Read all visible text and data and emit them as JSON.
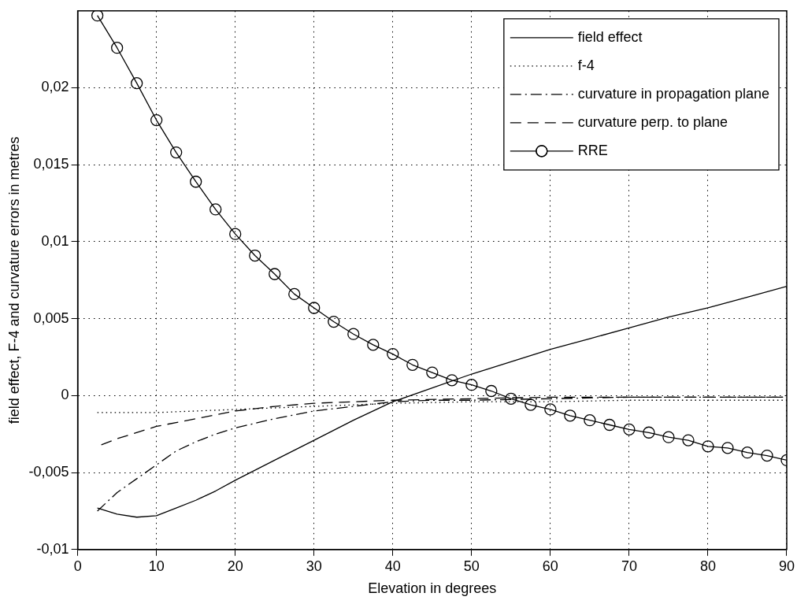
{
  "chart_data": {
    "type": "line",
    "xlabel": "Elevation in degrees",
    "ylabel": "field effect, F-4 and curvature errors in metres",
    "xlim": [
      0,
      90
    ],
    "xticks": [
      0,
      10,
      20,
      30,
      40,
      50,
      60,
      70,
      80,
      90
    ],
    "ylim": [
      -0.01,
      0.025
    ],
    "yticks": [
      {
        "value": -0.01,
        "label": "-0,01"
      },
      {
        "value": -0.005,
        "label": "-0,005"
      },
      {
        "value": 0,
        "label": "0"
      },
      {
        "value": 0.005,
        "label": "0,005"
      },
      {
        "value": 0.01,
        "label": "0,01"
      },
      {
        "value": 0.015,
        "label": "0,015"
      },
      {
        "value": 0.02,
        "label": "0,02"
      }
    ],
    "grid": true,
    "legend": "top right",
    "series": [
      {
        "name": "field effect",
        "color": "#000000",
        "line_style": "solid",
        "marker": "none",
        "x": [
          2.5,
          5,
          7.5,
          10,
          12.5,
          15,
          17.5,
          20,
          25,
          30,
          35,
          40,
          45,
          50,
          55,
          60,
          65,
          70,
          75,
          80,
          85,
          90
        ],
        "values": [
          -0.0073,
          -0.0077,
          -0.0079,
          -0.0078,
          -0.0073,
          -0.0068,
          -0.0062,
          -0.0055,
          -0.0042,
          -0.0029,
          -0.0016,
          -0.0004,
          0.0005,
          0.0014,
          0.0022,
          0.003,
          0.0037,
          0.0044,
          0.0051,
          0.0057,
          0.0064,
          0.0071
        ]
      },
      {
        "name": "f-4",
        "color": "#000000",
        "line_style": "dotted",
        "marker": "none",
        "x": [
          2.5,
          10,
          20,
          30,
          40,
          50,
          60,
          70,
          80,
          90
        ],
        "values": [
          -0.0011,
          -0.0011,
          -0.0009,
          -0.0007,
          -0.0005,
          -0.0004,
          -0.0004,
          -0.0003,
          -0.0003,
          -0.0003
        ]
      },
      {
        "name": "curvature in propagation plane",
        "color": "#000000",
        "line_style": "dashdot",
        "marker": "none",
        "x": [
          2.5,
          5,
          7.5,
          10,
          12.5,
          15,
          17.5,
          20,
          25,
          30,
          35,
          40,
          45,
          50,
          60,
          70,
          80,
          90
        ],
        "values": [
          -0.0075,
          -0.0063,
          -0.0054,
          -0.0045,
          -0.0036,
          -0.003,
          -0.0025,
          -0.0021,
          -0.0015,
          -0.001,
          -0.0007,
          -0.0004,
          -0.0003,
          -0.0003,
          -0.0002,
          -0.0001,
          -0.0001,
          -0.0001
        ]
      },
      {
        "name": "curvature perp. to plane",
        "color": "#000000",
        "line_style": "dashed",
        "marker": "none",
        "x": [
          3,
          5,
          10,
          15,
          20,
          25,
          30,
          35,
          40,
          50,
          60,
          70,
          80,
          90
        ],
        "values": [
          -0.0032,
          -0.0028,
          -0.002,
          -0.0015,
          -0.001,
          -0.0007,
          -0.0005,
          -0.0004,
          -0.0003,
          -0.0002,
          -0.0001,
          -0.0001,
          -0.0001,
          -0.0001
        ]
      },
      {
        "name": "RRE",
        "color": "#000000",
        "line_style": "solid",
        "marker": "circle",
        "x": [
          2.5,
          5,
          7.5,
          10,
          12.5,
          15,
          17.5,
          20,
          22.5,
          25,
          27.5,
          30,
          32.5,
          35,
          37.5,
          40,
          42.5,
          45,
          47.5,
          50,
          52.5,
          55,
          57.5,
          60,
          62.5,
          65,
          67.5,
          70,
          72.5,
          75,
          77.5,
          80,
          82.5,
          85,
          87.5,
          90
        ],
        "values": [
          0.0247,
          0.0226,
          0.0203,
          0.0179,
          0.0158,
          0.0139,
          0.0121,
          0.0105,
          0.0091,
          0.0079,
          0.0066,
          0.0057,
          0.0048,
          0.004,
          0.0033,
          0.0027,
          0.002,
          0.0015,
          0.001,
          0.0007,
          0.0003,
          -0.0002,
          -0.0006,
          -0.0009,
          -0.0013,
          -0.0016,
          -0.0019,
          -0.0022,
          -0.0024,
          -0.0027,
          -0.0029,
          -0.0033,
          -0.0034,
          -0.0037,
          -0.0039,
          -0.0042
        ]
      }
    ]
  }
}
